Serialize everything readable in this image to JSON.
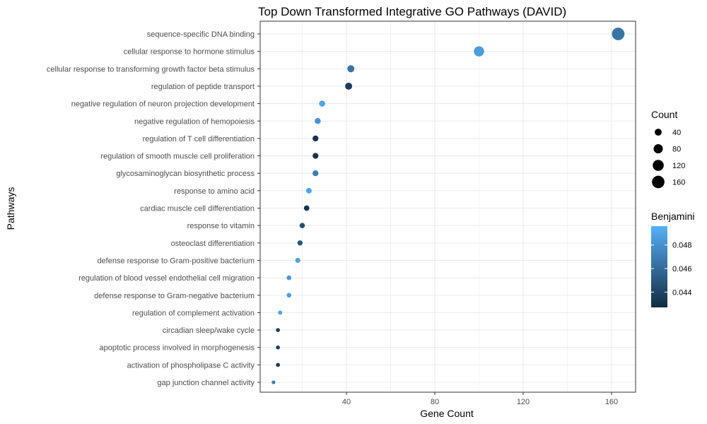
{
  "chart_data": {
    "type": "scatter",
    "title": "Top Down Transformed Integrative GO Pathways (DAVID)",
    "xlabel": "Gene Count",
    "ylabel": "Pathways",
    "xlim": [
      0,
      170
    ],
    "xticks": [
      40,
      80,
      120,
      160
    ],
    "grid": true,
    "categories": [
      "sequence-specific DNA binding",
      "cellular response to hormone stimulus",
      "cellular response to transforming growth factor beta stimulus",
      "regulation of peptide transport",
      "negative regulation of neuron projection development",
      "negative regulation of hemopoiesis",
      "regulation of T cell differentiation",
      "regulation of smooth muscle cell proliferation",
      "glycosaminoglycan biosynthetic process",
      "response to amino acid",
      "cardiac muscle cell differentiation",
      "response to vitamin",
      "osteoclast differentiation",
      "defense response to Gram-positive bacterium",
      "regulation of blood vessel endothelial cell migration",
      "defense response to Gram-negative bacterium",
      "regulation of complement activation",
      "circadian sleep/wake cycle",
      "apoptotic process involved in morphogenesis",
      "activation of phospholipase C activity",
      "gap junction channel activity"
    ],
    "points": [
      {
        "pathway": "sequence-specific DNA binding",
        "gene_count": 163,
        "benjamini": 0.0465
      },
      {
        "pathway": "cellular response to hormone stimulus",
        "gene_count": 100,
        "benjamini": 0.0485
      },
      {
        "pathway": "cellular response to transforming growth factor beta stimulus",
        "gene_count": 42,
        "benjamini": 0.0465
      },
      {
        "pathway": "regulation of peptide transport",
        "gene_count": 41,
        "benjamini": 0.0436
      },
      {
        "pathway": "negative regulation of neuron projection development",
        "gene_count": 29,
        "benjamini": 0.049
      },
      {
        "pathway": "negative regulation of hemopoiesis",
        "gene_count": 27,
        "benjamini": 0.048
      },
      {
        "pathway": "regulation of T cell differentiation",
        "gene_count": 26,
        "benjamini": 0.043
      },
      {
        "pathway": "regulation of smooth muscle cell proliferation",
        "gene_count": 26,
        "benjamini": 0.0432
      },
      {
        "pathway": "glycosaminoglycan biosynthetic process",
        "gene_count": 26,
        "benjamini": 0.047
      },
      {
        "pathway": "response to amino acid",
        "gene_count": 23,
        "benjamini": 0.049
      },
      {
        "pathway": "cardiac muscle cell differentiation",
        "gene_count": 22,
        "benjamini": 0.0432
      },
      {
        "pathway": "response to vitamin",
        "gene_count": 20,
        "benjamini": 0.0445
      },
      {
        "pathway": "osteoclast differentiation",
        "gene_count": 19,
        "benjamini": 0.045
      },
      {
        "pathway": "defense response to Gram-positive bacterium",
        "gene_count": 18,
        "benjamini": 0.049
      },
      {
        "pathway": "regulation of blood vessel endothelial cell migration",
        "gene_count": 14,
        "benjamini": 0.0485
      },
      {
        "pathway": "defense response to Gram-negative bacterium",
        "gene_count": 14,
        "benjamini": 0.0488
      },
      {
        "pathway": "regulation of complement activation",
        "gene_count": 10,
        "benjamini": 0.0488
      },
      {
        "pathway": "circadian sleep/wake cycle",
        "gene_count": 9,
        "benjamini": 0.0438
      },
      {
        "pathway": "apoptotic process involved in morphogenesis",
        "gene_count": 9,
        "benjamini": 0.044
      },
      {
        "pathway": "activation of phospholipase C activity",
        "gene_count": 9,
        "benjamini": 0.0436
      },
      {
        "pathway": "gap junction channel activity",
        "gene_count": 7,
        "benjamini": 0.047
      }
    ],
    "legend_count": {
      "title": "Count",
      "values": [
        40,
        80,
        120,
        160
      ]
    },
    "legend_benjamini": {
      "title": "Benjamini",
      "ticks": [
        0.048,
        0.046,
        0.044
      ],
      "tick_labels": [
        "0.048",
        "0.046",
        "0.044"
      ],
      "range": [
        0.0427,
        0.0496
      ],
      "color_low": "#132B43",
      "color_high": "#56B1F7"
    },
    "legend_placement": "right"
  }
}
